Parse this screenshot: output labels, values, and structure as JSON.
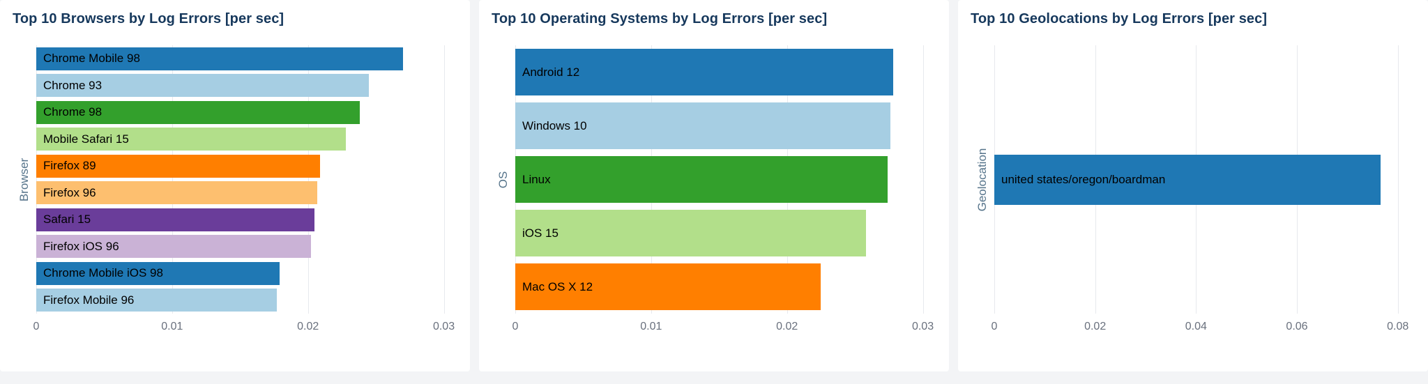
{
  "page": {
    "background": "#f3f4f6",
    "panel_background": "#ffffff",
    "title_color": "#16385c",
    "axis_title_color": "#55738a",
    "tick_label_color": "#69707d",
    "gridline_color": "#e7e9ed"
  },
  "chart_data": [
    {
      "type": "bar",
      "orientation": "horizontal",
      "title": "Top 10 Browsers by Log Errors [per sec]",
      "ylabel": "Browser",
      "xlabel": "",
      "grid": true,
      "x_axis": {
        "max": 0.031,
        "ticks": [
          {
            "value": 0,
            "label": "0"
          },
          {
            "value": 0.01,
            "label": "0.01"
          },
          {
            "value": 0.02,
            "label": "0.02"
          },
          {
            "value": 0.03,
            "label": "0.03"
          }
        ]
      },
      "bars": [
        {
          "label": "Chrome Mobile 98",
          "value": 0.027,
          "color": "#1f78b4"
        },
        {
          "label": "Chrome 93",
          "value": 0.0245,
          "color": "#a6cee3"
        },
        {
          "label": "Chrome 98",
          "value": 0.0238,
          "color": "#33a02c"
        },
        {
          "label": "Mobile Safari 15",
          "value": 0.0228,
          "color": "#b2df8a"
        },
        {
          "label": "Firefox 89",
          "value": 0.0209,
          "color": "#ff7f00"
        },
        {
          "label": "Firefox 96",
          "value": 0.0207,
          "color": "#fdbf6f"
        },
        {
          "label": "Safari 15",
          "value": 0.0205,
          "color": "#6a3d9a"
        },
        {
          "label": "Firefox iOS 96",
          "value": 0.0202,
          "color": "#cab2d6"
        },
        {
          "label": "Chrome Mobile iOS 98",
          "value": 0.0179,
          "color": "#1f78b4"
        },
        {
          "label": "Firefox Mobile 96",
          "value": 0.0177,
          "color": "#a6cee3"
        }
      ]
    },
    {
      "type": "bar",
      "orientation": "horizontal",
      "title": "Top 10 Operating Systems by Log Errors [per sec]",
      "ylabel": "OS",
      "xlabel": "",
      "grid": true,
      "x_axis": {
        "max": 0.031,
        "ticks": [
          {
            "value": 0,
            "label": "0"
          },
          {
            "value": 0.01,
            "label": "0.01"
          },
          {
            "value": 0.02,
            "label": "0.02"
          },
          {
            "value": 0.03,
            "label": "0.03"
          }
        ]
      },
      "bars": [
        {
          "label": "Android 12",
          "value": 0.0278,
          "color": "#1f78b4"
        },
        {
          "label": "Windows 10",
          "value": 0.0276,
          "color": "#a6cee3"
        },
        {
          "label": "Linux",
          "value": 0.0274,
          "color": "#33a02c"
        },
        {
          "label": "iOS 15",
          "value": 0.0258,
          "color": "#b2df8a"
        },
        {
          "label": "Mac OS X 12",
          "value": 0.0225,
          "color": "#ff7f00"
        }
      ]
    },
    {
      "type": "bar",
      "orientation": "horizontal",
      "title": "Top 10 Geolocations by Log Errors [per sec]",
      "ylabel": "Geolocation",
      "xlabel": "",
      "grid": true,
      "x_axis": {
        "max": 0.0835,
        "ticks": [
          {
            "value": 0,
            "label": "0"
          },
          {
            "value": 0.02,
            "label": "0.02"
          },
          {
            "value": 0.04,
            "label": "0.04"
          },
          {
            "value": 0.06,
            "label": "0.06"
          },
          {
            "value": 0.08,
            "label": "0.08"
          }
        ]
      },
      "bars": [
        {
          "label": "united states/oregon/boardman",
          "value": 0.0766,
          "color": "#1f78b4"
        }
      ]
    }
  ]
}
